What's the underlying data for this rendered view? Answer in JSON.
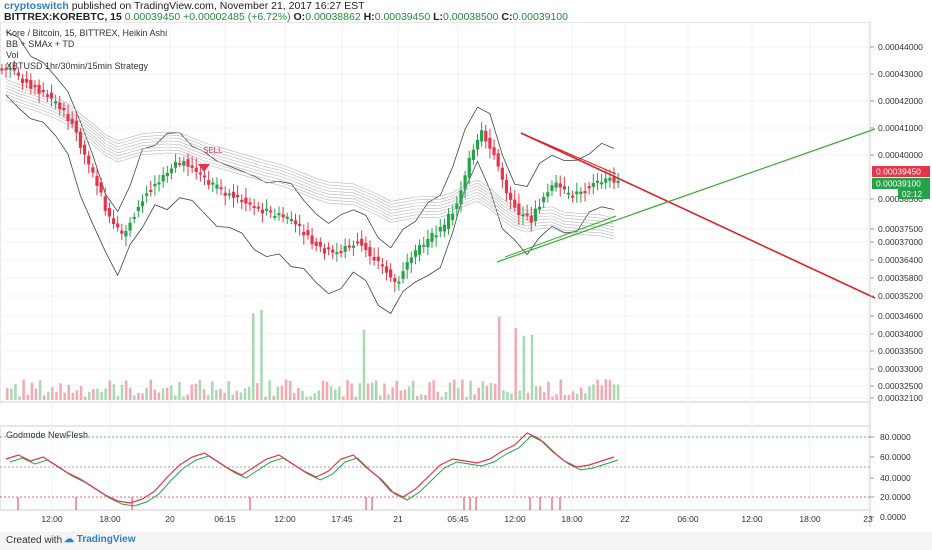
{
  "header": {
    "author": "cryptoswitch",
    "published_text": "published on TradingView.com, November 21, 2017 16:27 EST",
    "symbol_line_prefix": "BITTREX:KOREBTC, 15",
    "last": "0.00039450",
    "change": "+0.00002485 (+6.72%)",
    "o_label": "O:",
    "o": "0.00038862",
    "h_label": "H:",
    "h": "0.00039450",
    "l_label": "L:",
    "l": "0.00038500",
    "c_label": "C:",
    "c": "0.00039100"
  },
  "legend": {
    "line1": "Kore / Bitcoin, 15, BITTREX, Heikin Ashi",
    "line2": "BB + SMAx + TD",
    "line3": "Vol",
    "line4": "XBTUSD 1hr/30min/15min Strategy",
    "osc_title": "Godmode NewFlesh",
    "sell_label": "SELL"
  },
  "colors": {
    "up": "#26a24a",
    "down": "#e4354a",
    "trend_red": "#e0202a",
    "trend_green": "#3aaa35",
    "bb": "#444444",
    "price_tag_red": "#e4354a",
    "price_tag_green": "#26a24a"
  },
  "footer": {
    "created_with": "Created with",
    "brand": "TradingView"
  },
  "chart_data": {
    "type": "candlestick",
    "title": "Kore / Bitcoin, 15, BITTREX, Heikin Ashi",
    "price_axis": {
      "ticks": [
        "0.00044000",
        "0.00043000",
        "0.00042000",
        "0.00041000",
        "0.00040000",
        "0.00038500",
        "0.00037500",
        "0.00037000",
        "0.00036400",
        "0.00035800",
        "0.00035200",
        "0.00034600",
        "0.00034000",
        "0.00033500",
        "0.00033000",
        "0.00032500",
        "0.00032100"
      ],
      "last_price_tag": "0.00039450",
      "close_tag": "0.00039100",
      "countdown_tag": "02:12"
    },
    "time_axis": {
      "ticks": [
        "12:00",
        "18:00",
        "20",
        "06:15",
        "12:00",
        "17:45",
        "21",
        "05:45",
        "12:00",
        "18:00",
        "22",
        "06:00",
        "12:00",
        "18:00",
        "23"
      ]
    },
    "price_series": [
      0.000432,
      0.000428,
      0.000425,
      0.000422,
      0.000418,
      0.000412,
      0.0004,
      0.00039,
      0.000378,
      0.000372,
      0.00038,
      0.000388,
      0.000392,
      0.000396,
      0.000398,
      0.000394,
      0.00039,
      0.000388,
      0.000386,
      0.000384,
      0.000382,
      0.00038,
      0.000379,
      0.000376,
      0.000372,
      0.000368,
      0.000366,
      0.000368,
      0.00037,
      0.000366,
      0.000362,
      0.000356,
      0.000362,
      0.000368,
      0.000372,
      0.000376,
      0.000384,
      0.000398,
      0.000408,
      0.0004,
      0.000388,
      0.00038,
      0.000378,
      0.000386,
      0.00039,
      0.000386,
      0.000388,
      0.00039,
      0.000392,
      0.000391
    ],
    "oscillator": {
      "name": "Godmode NewFlesh",
      "ticks": [
        "80.0000",
        "60.0000",
        "40.0000",
        "20.0000",
        "0.0000"
      ],
      "levels": [
        80,
        50,
        20
      ],
      "values": [
        58,
        62,
        56,
        60,
        52,
        44,
        38,
        30,
        22,
        16,
        14,
        18,
        26,
        40,
        52,
        60,
        64,
        56,
        48,
        42,
        50,
        58,
        62,
        54,
        46,
        40,
        46,
        58,
        62,
        50,
        40,
        26,
        20,
        28,
        40,
        52,
        58,
        56,
        54,
        58,
        66,
        72,
        84,
        78,
        66,
        56,
        50,
        52,
        56,
        60
      ]
    }
  }
}
